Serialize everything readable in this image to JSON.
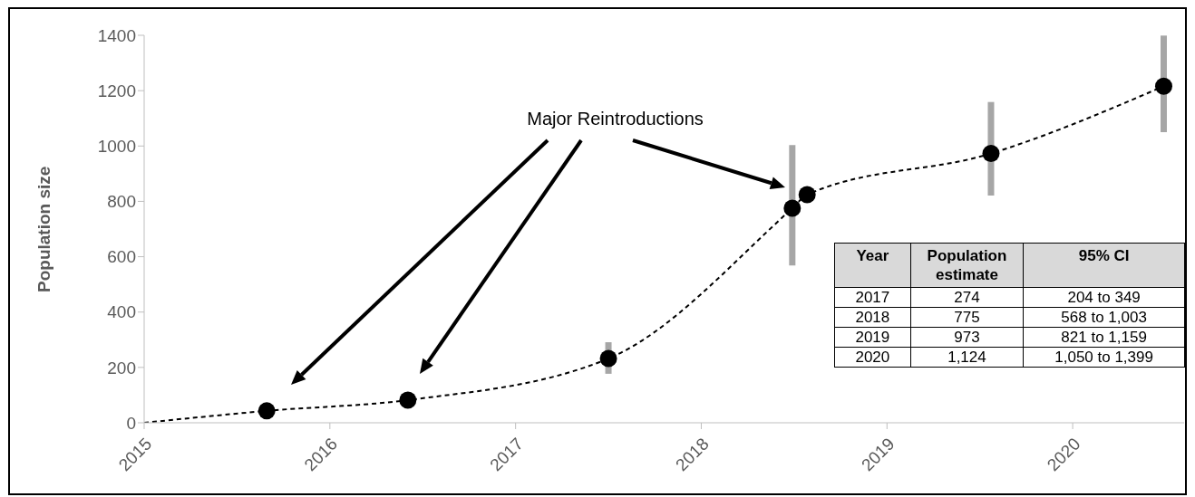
{
  "chart_data": {
    "type": "scatter",
    "ylabel": "Population size",
    "annotations": [
      "Major Reintroductions",
      "Year",
      "Population estimate",
      "95% CI",
      "2017",
      "274",
      "204 to 349",
      "2018",
      "775",
      "568 to 1,003",
      "2019",
      "973",
      "821 to 1,159",
      "2020",
      "1,124",
      "1,050 to 1,399"
    ],
    "xlim": [
      2015,
      2020.6
    ],
    "xticks": [
      2015,
      2016,
      2017,
      2018,
      2019,
      2020
    ],
    "ylim": [
      0,
      1400
    ],
    "yticks": [
      0,
      200,
      400,
      600,
      800,
      1000,
      1200,
      1400
    ],
    "series": [
      {
        "type": "line",
        "color": "#000000",
        "line_style": "dashed",
        "marker": "none",
        "x": [
          2015,
          2015.66,
          2016.42,
          2017.5,
          2018.49,
          2018.57,
          2019.56,
          2020.49
        ],
        "values": [
          0,
          43,
          82,
          232,
          775,
          824,
          973,
          1216
        ]
      },
      {
        "type": "scatter",
        "color": "#000000",
        "marker": "circle",
        "x": [
          2015.66,
          2016.42,
          2017.5,
          2018.49,
          2018.57,
          2019.56,
          2020.49
        ],
        "values": [
          43,
          82,
          232,
          775,
          824,
          973,
          1216
        ],
        "errors": [
          null,
          null,
          [
            177,
            291
          ],
          [
            568,
            1003
          ],
          null,
          [
            821,
            1159
          ],
          [
            1050,
            1399
          ]
        ]
      }
    ]
  }
}
